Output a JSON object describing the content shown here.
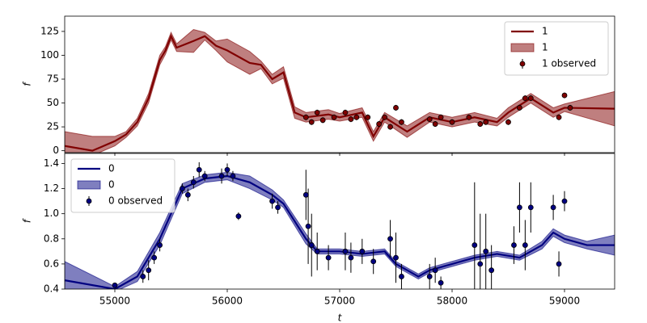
{
  "chart_data": [
    {
      "type": "line",
      "ylabel": "f",
      "xlim": [
        54554,
        59446
      ],
      "ylim": [
        -2,
        141
      ],
      "yticks": [
        0,
        25,
        50,
        75,
        100,
        125
      ],
      "legend": "upper right",
      "series": [
        {
          "name": "1",
          "kind": "line",
          "color": "#800000",
          "x": [
            54554,
            54800,
            55000,
            55100,
            55200,
            55300,
            55400,
            55450,
            55500,
            55550,
            55700,
            55800,
            55900,
            56000,
            56200,
            56300,
            56400,
            56500,
            56600,
            56700,
            56900,
            57000,
            57200,
            57300,
            57400,
            57600,
            57800,
            58000,
            58200,
            58400,
            58500,
            58700,
            58900,
            59000,
            59446
          ],
          "values": [
            5,
            0,
            10,
            17,
            30,
            55,
            95,
            105,
            120,
            108,
            115,
            120,
            110,
            105,
            92,
            90,
            75,
            82,
            40,
            35,
            38,
            35,
            40,
            15,
            35,
            20,
            35,
            30,
            35,
            30,
            40,
            55,
            40,
            45,
            44
          ]
        },
        {
          "name": "1",
          "kind": "band",
          "color": "#800000",
          "x": [
            54554,
            54800,
            55000,
            55100,
            55200,
            55300,
            55400,
            55450,
            55500,
            55550,
            55700,
            55800,
            55900,
            56000,
            56200,
            56300,
            56400,
            56500,
            56600,
            56700,
            56900,
            57000,
            57200,
            57300,
            57400,
            57600,
            57800,
            58000,
            58200,
            58400,
            58500,
            58700,
            58900,
            59000,
            59446
          ],
          "lower": [
            -10,
            -5,
            5,
            14,
            26,
            50,
            90,
            101,
            116,
            104,
            103,
            116,
            105,
            93,
            80,
            86,
            70,
            76,
            34,
            30,
            33,
            31,
            35,
            10,
            30,
            14,
            30,
            25,
            30,
            26,
            35,
            50,
            35,
            41,
            26
          ],
          "upper": [
            20,
            15,
            15,
            20,
            34,
            60,
            100,
            109,
            124,
            112,
            127,
            124,
            115,
            117,
            104,
            94,
            80,
            88,
            46,
            40,
            43,
            39,
            45,
            20,
            40,
            26,
            40,
            35,
            40,
            34,
            45,
            60,
            45,
            49,
            62
          ]
        },
        {
          "name": "1 observed",
          "kind": "errorbar",
          "color": "#800000",
          "x": [
            56700,
            56750,
            56800,
            56850,
            56950,
            57050,
            57100,
            57150,
            57250,
            57350,
            57400,
            57450,
            57500,
            57550,
            57800,
            57850,
            57900,
            58000,
            58150,
            58250,
            58300,
            58500,
            58600,
            58650,
            58700,
            58950,
            59000,
            59050
          ],
          "values": [
            35,
            30,
            40,
            32,
            35,
            40,
            33,
            35,
            35,
            28,
            35,
            25,
            45,
            30,
            33,
            28,
            35,
            30,
            35,
            28,
            30,
            30,
            45,
            55,
            55,
            35,
            58,
            45
          ],
          "errors": [
            3,
            3,
            3,
            3,
            3,
            3,
            3,
            3,
            3,
            3,
            3,
            3,
            3,
            3,
            3,
            3,
            3,
            3,
            3,
            3,
            3,
            3,
            3,
            3,
            3,
            3,
            3,
            3
          ]
        }
      ]
    },
    {
      "type": "line",
      "ylabel": "f",
      "xlabel": "t",
      "xlim": [
        54554,
        59446
      ],
      "ylim": [
        0.4,
        1.48
      ],
      "xticks": [
        55000,
        56000,
        57000,
        58000,
        59000
      ],
      "yticks": [
        0.4,
        0.6,
        0.8,
        {
          "value": 1,
          "label": "1.0"
        },
        1.2,
        1.4
      ],
      "legend": "upper left",
      "series": [
        {
          "name": "0",
          "kind": "line",
          "color": "#000080",
          "x": [
            54554,
            55000,
            55200,
            55400,
            55600,
            55800,
            56000,
            56200,
            56400,
            56500,
            56700,
            56800,
            57000,
            57200,
            57400,
            57500,
            57700,
            57800,
            58000,
            58200,
            58400,
            58600,
            58800,
            58900,
            59000,
            59200,
            59446
          ],
          "values": [
            0.47,
            0.4,
            0.5,
            0.8,
            1.2,
            1.28,
            1.3,
            1.25,
            1.15,
            1.08,
            0.8,
            0.7,
            0.7,
            0.68,
            0.7,
            0.6,
            0.5,
            0.55,
            0.6,
            0.65,
            0.68,
            0.65,
            0.75,
            0.85,
            0.8,
            0.75,
            0.75
          ]
        },
        {
          "name": "0",
          "kind": "band",
          "color": "#000080",
          "x": [
            54554,
            55000,
            55200,
            55400,
            55600,
            55800,
            56000,
            56200,
            56400,
            56500,
            56700,
            56800,
            57000,
            57200,
            57400,
            57500,
            57700,
            57800,
            58000,
            58200,
            58400,
            58600,
            58800,
            58900,
            59000,
            59200,
            59446
          ],
          "lower": [
            0.32,
            0.38,
            0.46,
            0.75,
            1.16,
            1.25,
            1.27,
            1.2,
            1.11,
            1.05,
            0.76,
            0.68,
            0.68,
            0.66,
            0.68,
            0.58,
            0.48,
            0.53,
            0.58,
            0.63,
            0.66,
            0.63,
            0.72,
            0.82,
            0.77,
            0.72,
            0.67
          ],
          "upper": [
            0.62,
            0.42,
            0.54,
            0.85,
            1.24,
            1.31,
            1.33,
            1.3,
            1.19,
            1.11,
            0.84,
            0.72,
            0.72,
            0.7,
            0.72,
            0.62,
            0.52,
            0.57,
            0.62,
            0.67,
            0.7,
            0.67,
            0.78,
            0.88,
            0.83,
            0.78,
            0.83
          ]
        },
        {
          "name": "0 observed",
          "kind": "errorbar",
          "color": "#000080",
          "x": [
            55000,
            55250,
            55300,
            55350,
            55400,
            55600,
            55650,
            55700,
            55750,
            55800,
            55950,
            56000,
            56050,
            56100,
            56400,
            56450,
            56700,
            56720,
            56750,
            56800,
            56900,
            57050,
            57100,
            57200,
            57300,
            57450,
            57500,
            57550,
            57800,
            57850,
            57900,
            58200,
            58250,
            58300,
            58350,
            58550,
            58600,
            58650,
            58700,
            58900,
            58950,
            59000
          ],
          "values": [
            0.43,
            0.5,
            0.55,
            0.65,
            0.75,
            1.2,
            1.15,
            1.25,
            1.35,
            1.3,
            1.3,
            1.35,
            1.3,
            0.98,
            1.1,
            1.05,
            1.15,
            0.9,
            0.75,
            0.7,
            0.65,
            0.7,
            0.65,
            0.7,
            0.62,
            0.8,
            0.65,
            0.5,
            0.5,
            0.55,
            0.45,
            0.75,
            0.6,
            0.7,
            0.55,
            0.75,
            1.05,
            0.75,
            1.05,
            1.05,
            0.6,
            1.1
          ],
          "errors": [
            0.02,
            0.05,
            0.08,
            0.05,
            0.05,
            0.04,
            0.05,
            0.05,
            0.06,
            0.04,
            0.06,
            0.05,
            0.04,
            0.03,
            0.06,
            0.05,
            0.2,
            0.3,
            0.25,
            0.15,
            0.1,
            0.15,
            0.12,
            0.1,
            0.1,
            0.15,
            0.2,
            0.1,
            0.1,
            0.1,
            0.05,
            0.5,
            0.4,
            0.3,
            0.2,
            0.15,
            0.2,
            0.2,
            0.2,
            0.1,
            0.1,
            0.08
          ]
        }
      ]
    }
  ]
}
